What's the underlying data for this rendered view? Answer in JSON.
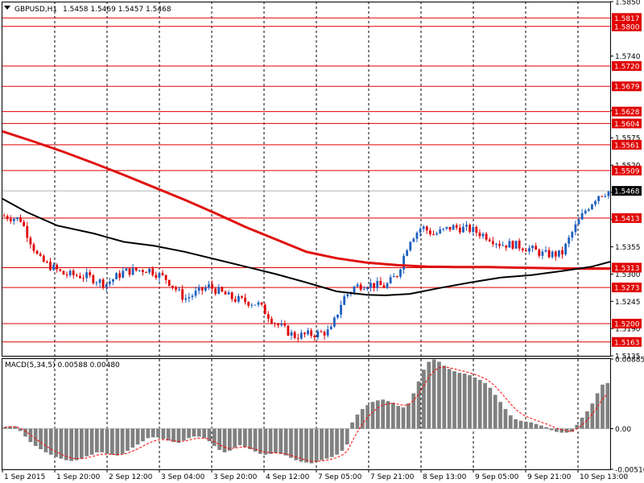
{
  "header": {
    "symbol": "GBPUSD,H1",
    "ohlc": "1.5458 1.5469 1.5457 1.5468"
  },
  "colors": {
    "background": "#ffffff",
    "frame": "#000000",
    "grid": "#000000",
    "bull_candle": "#2060c0",
    "bear_candle": "#e00000",
    "level_line": "#e00000",
    "level_tag_bg": "#e00000",
    "level_tag_text": "#ffffff",
    "ma_slow": "#e01010",
    "ma_fast": "#000000",
    "macd_bar": "#808080",
    "macd_signal": "#ff0000",
    "current_price_tag": "#000000"
  },
  "chart_data": [
    {
      "type": "candlestick",
      "timeframe": "H1",
      "ylim": [
        1.5135,
        1.585
      ],
      "y_ticks": [
        "1.5850",
        "1.5740",
        "1.5630",
        "1.5575",
        "1.5520",
        "1.5465",
        "1.5410",
        "1.5355",
        "1.5300",
        "1.5245",
        "1.5190",
        "1.5135"
      ],
      "x_ticks": [
        "1 Sep 2015",
        "1 Sep 20:00",
        "2 Sep 12:00",
        "3 Sep 04:00",
        "3 Sep 20:00",
        "4 Sep 12:00",
        "7 Sep 05:00",
        "7 Sep 21:00",
        "8 Sep 13:00",
        "9 Sep 05:00",
        "9 Sep 21:00",
        "10 Sep 13:00"
      ],
      "levels": [
        "1.5817",
        "1.5800",
        "1.5720",
        "1.5679",
        "1.5628",
        "1.5604",
        "1.5561",
        "1.5509",
        "1.5413",
        "1.5313",
        "1.5273",
        "1.5200",
        "1.5163"
      ],
      "current_price": "1.5468",
      "close_path": [
        [
          0,
          1.5418
        ],
        [
          0.03,
          1.541
        ],
        [
          0.06,
          1.533
        ],
        [
          0.1,
          1.53
        ],
        [
          0.14,
          1.5295
        ],
        [
          0.17,
          1.528
        ],
        [
          0.2,
          1.5305
        ],
        [
          0.24,
          1.531
        ],
        [
          0.27,
          1.529
        ],
        [
          0.3,
          1.525
        ],
        [
          0.34,
          1.5275
        ],
        [
          0.38,
          1.525
        ],
        [
          0.42,
          1.524
        ],
        [
          0.45,
          1.52
        ],
        [
          0.48,
          1.5175
        ],
        [
          0.52,
          1.518
        ],
        [
          0.54,
          1.5185
        ],
        [
          0.56,
          1.525
        ],
        [
          0.58,
          1.5275
        ],
        [
          0.6,
          1.528
        ],
        [
          0.63,
          1.5275
        ],
        [
          0.65,
          1.53
        ],
        [
          0.67,
          1.537
        ],
        [
          0.69,
          1.5395
        ],
        [
          0.71,
          1.538
        ],
        [
          0.74,
          1.5395
        ],
        [
          0.77,
          1.539
        ],
        [
          0.8,
          1.5375
        ],
        [
          0.82,
          1.536
        ],
        [
          0.84,
          1.536
        ],
        [
          0.87,
          1.535
        ],
        [
          0.89,
          1.534
        ],
        [
          0.92,
          1.534
        ],
        [
          0.94,
          1.539
        ],
        [
          0.96,
          1.543
        ],
        [
          0.98,
          1.546
        ],
        [
          1.0,
          1.5468
        ]
      ],
      "ma_slow": [
        [
          0,
          1.5588
        ],
        [
          0.05,
          1.5568
        ],
        [
          0.1,
          1.5547
        ],
        [
          0.15,
          1.5524
        ],
        [
          0.2,
          1.55
        ],
        [
          0.25,
          1.5475
        ],
        [
          0.3,
          1.545
        ],
        [
          0.35,
          1.5423
        ],
        [
          0.4,
          1.5395
        ],
        [
          0.45,
          1.537
        ],
        [
          0.5,
          1.5345
        ],
        [
          0.55,
          1.5332
        ],
        [
          0.6,
          1.5323
        ],
        [
          0.65,
          1.5318
        ],
        [
          0.7,
          1.5315
        ],
        [
          0.75,
          1.5314
        ],
        [
          0.8,
          1.5314
        ],
        [
          0.85,
          1.5313
        ],
        [
          0.9,
          1.5312
        ],
        [
          0.95,
          1.5311
        ],
        [
          1.0,
          1.5311
        ]
      ],
      "ma_fast": [
        [
          0,
          1.5452
        ],
        [
          0.04,
          1.5425
        ],
        [
          0.09,
          1.5398
        ],
        [
          0.15,
          1.5382
        ],
        [
          0.2,
          1.5365
        ],
        [
          0.25,
          1.5357
        ],
        [
          0.3,
          1.5345
        ],
        [
          0.35,
          1.533
        ],
        [
          0.4,
          1.5315
        ],
        [
          0.45,
          1.53
        ],
        [
          0.5,
          1.5283
        ],
        [
          0.55,
          1.5265
        ],
        [
          0.6,
          1.5258
        ],
        [
          0.63,
          1.5257
        ],
        [
          0.67,
          1.526
        ],
        [
          0.72,
          1.5272
        ],
        [
          0.77,
          1.5283
        ],
        [
          0.82,
          1.5293
        ],
        [
          0.87,
          1.5298
        ],
        [
          0.92,
          1.5306
        ],
        [
          0.97,
          1.5315
        ],
        [
          1.0,
          1.5325
        ]
      ]
    },
    {
      "type": "histogram",
      "title": "MACD(5,34,5) 0.00588 0.00480",
      "ylim": [
        -0.00516,
        0.00885
      ],
      "y_ticks": [
        "0.00885",
        "0.00",
        "-0.00516"
      ],
      "zero": "0.00",
      "bars": [
        0.0002,
        0.0003,
        0.0003,
        -0.0003,
        -0.001,
        -0.0017,
        -0.0022,
        -0.0026,
        -0.003,
        -0.0033,
        -0.0036,
        -0.0038,
        -0.004,
        -0.0041,
        -0.004,
        -0.0038,
        -0.0035,
        -0.0033,
        -0.003,
        -0.003,
        -0.0032,
        -0.0033,
        -0.0034,
        -0.0032,
        -0.0028,
        -0.0024,
        -0.002,
        -0.0016,
        -0.0012,
        -0.0011,
        -0.0011,
        -0.0013,
        -0.0015,
        -0.0017,
        -0.0018,
        -0.0015,
        -0.0012,
        -0.001,
        -0.001,
        -0.0012,
        -0.0016,
        -0.0022,
        -0.0027,
        -0.003,
        -0.0028,
        -0.0024,
        -0.0021,
        -0.0023,
        -0.0026,
        -0.0029,
        -0.0032,
        -0.0033,
        -0.0032,
        -0.0031,
        -0.0032,
        -0.0034,
        -0.0037,
        -0.004,
        -0.0042,
        -0.0043,
        -0.0044,
        -0.0042,
        -0.004,
        -0.0038,
        -0.0036,
        -0.0033,
        -0.0028,
        -0.002,
        0.0008,
        0.0018,
        0.0025,
        0.003,
        0.0034,
        0.0036,
        0.0037,
        0.0035,
        0.0033,
        0.0029,
        0.0027,
        0.0032,
        0.0045,
        0.006,
        0.0075,
        0.0085,
        0.0088,
        0.0085,
        0.008,
        0.0076,
        0.0073,
        0.0071,
        0.007,
        0.0068,
        0.0065,
        0.0062,
        0.0058,
        0.0052,
        0.0043,
        0.0034,
        0.0025,
        0.0017,
        0.0012,
        0.001,
        0.0009,
        0.0008,
        0.0006,
        0.0004,
        0.0002,
        -0.0002,
        -0.0004,
        -0.0005,
        -0.0005,
        -0.0004,
        0.0005,
        0.0014,
        0.0022,
        0.0032,
        0.0045,
        0.0056,
        0.0058
      ]
    }
  ]
}
